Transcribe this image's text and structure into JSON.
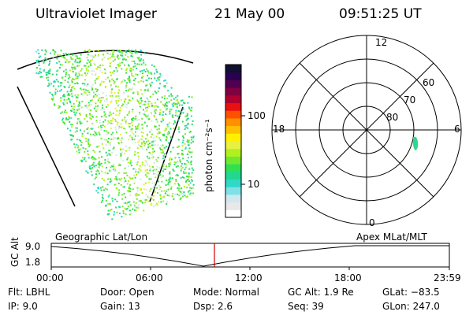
{
  "header": {
    "instrument": "Ultraviolet Imager",
    "date": "21 May 00",
    "time": "09:51:25 UT"
  },
  "colorbar": {
    "unit_label": "photon cm⁻²s⁻¹",
    "ticks": [
      "100",
      "10"
    ],
    "colors": [
      "#ffffff",
      "#e8e8e8",
      "#cfe8ef",
      "#7fe0e8",
      "#30d8c8",
      "#22d890",
      "#30e050",
      "#70e830",
      "#b0f020",
      "#e8f040",
      "#fff000",
      "#ffc000",
      "#ff9000",
      "#ff5000",
      "#e81010",
      "#b00030",
      "#800040",
      "#500050",
      "#2a0050",
      "#101030"
    ]
  },
  "polar_plot": {
    "mlt_labels": {
      "top": "12",
      "left": "18",
      "right": "6",
      "bottom": "0"
    },
    "lat_labels": [
      "60",
      "70",
      "80"
    ]
  },
  "timeline": {
    "y_axis_label": "GC Alt",
    "y_ticks": [
      "9.0",
      "1.8"
    ],
    "left_label": "Geographic Lat/Lon",
    "right_label": "Apex MLat/MLT",
    "time_ticks": [
      "00:00",
      "06:00",
      "12:00",
      "18:00",
      "23:59"
    ],
    "current_time_fraction": 0.41
  },
  "info": {
    "filter": "Flt: LBHL",
    "ip": "IP:  9.0",
    "door": "Door: Open",
    "gain": "Gain: 13",
    "mode": "Mode: Normal",
    "dsp": "Dsp:     2.6",
    "gc_alt": "GC Alt: 1.9 Re",
    "seq": "Seq: 39",
    "glat": "GLat: −83.5",
    "glon": "GLon: 247.0"
  }
}
